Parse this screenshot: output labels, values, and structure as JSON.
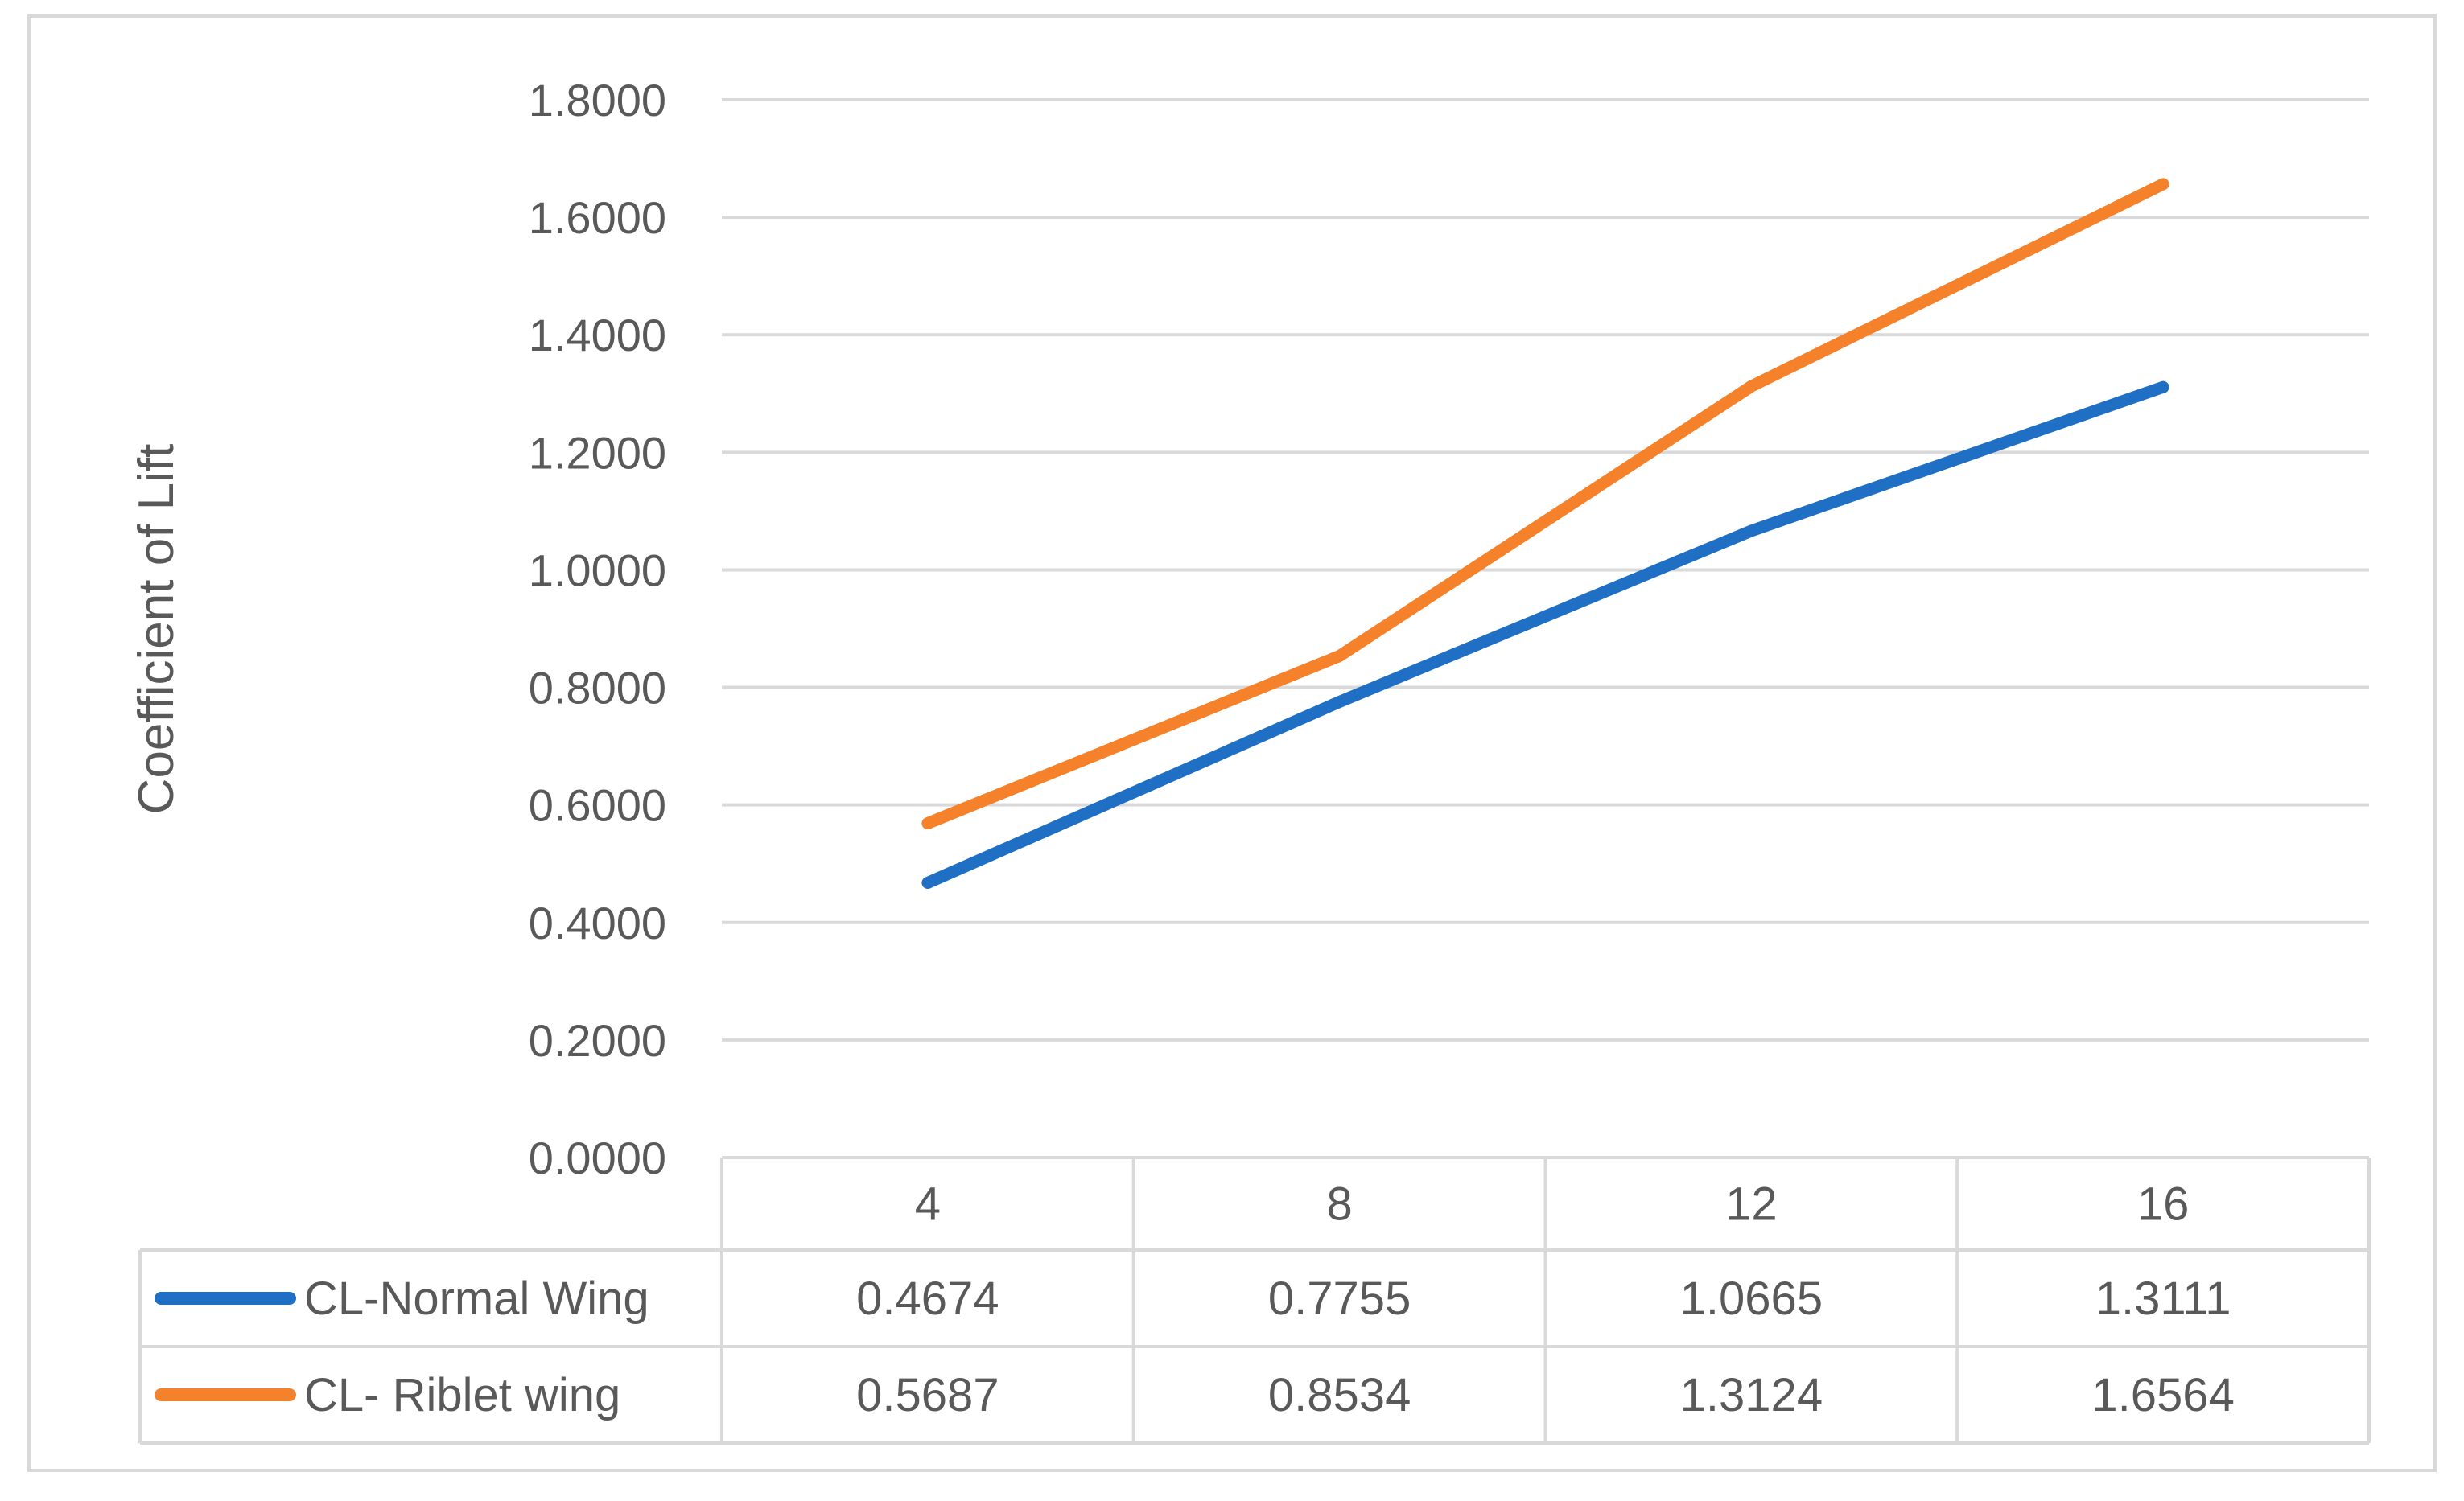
{
  "chart_data": {
    "type": "line",
    "title": "",
    "xlabel": "",
    "ylabel": "Coefficient of Lift",
    "categories": [
      "4",
      "8",
      "12",
      "16"
    ],
    "ylim": [
      0,
      1.8
    ],
    "y_ticks": [
      "0.0000",
      "0.2000",
      "0.4000",
      "0.6000",
      "0.8000",
      "1.0000",
      "1.2000",
      "1.4000",
      "1.6000",
      "1.8000"
    ],
    "grid": true,
    "legend": "data-table",
    "series": [
      {
        "name": "CL-Normal Wing",
        "color": "#1f6fc5",
        "values": [
          0.4674,
          0.7755,
          1.0665,
          1.3111
        ],
        "labels": [
          "0.4674",
          "0.7755",
          "1.0665",
          "1.3111"
        ]
      },
      {
        "name": "CL- Riblet wing",
        "color": "#f5822a",
        "values": [
          0.5687,
          0.8534,
          1.3124,
          1.6564
        ],
        "labels": [
          "0.5687",
          "0.8534",
          "1.3124",
          "1.6564"
        ]
      }
    ]
  }
}
